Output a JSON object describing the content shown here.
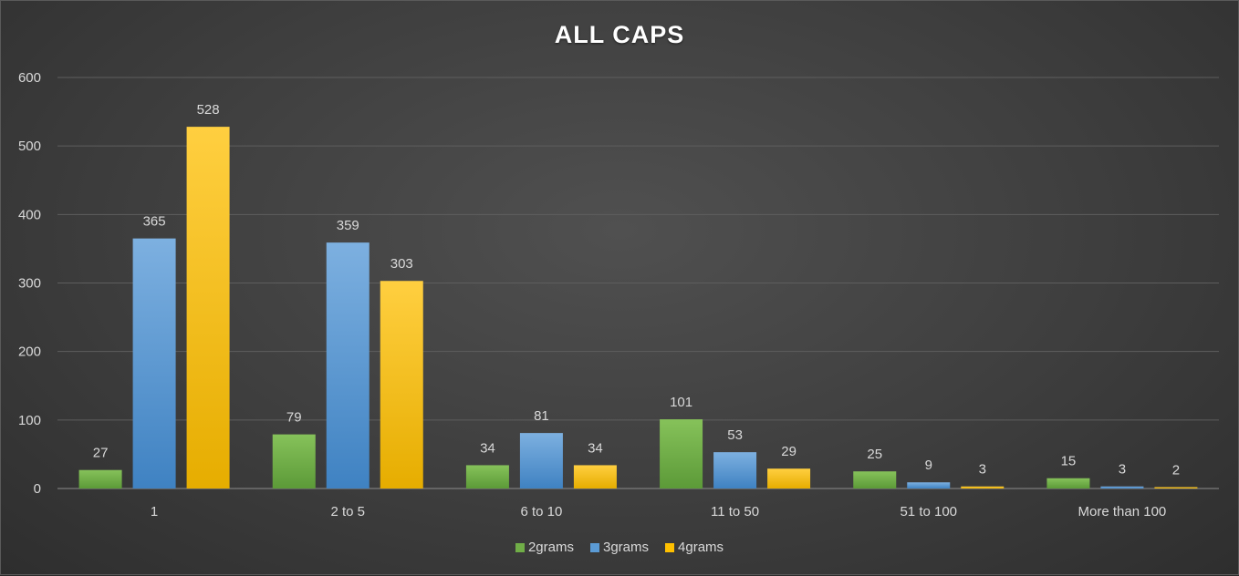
{
  "chart_data": {
    "type": "bar",
    "title": "ALL CAPS",
    "categories": [
      "1",
      "2 to 5",
      "6 to 10",
      "11 to 50",
      "51 to 100",
      "More than 100"
    ],
    "series": [
      {
        "name": "2grams",
        "color": "#70ad47",
        "values": [
          27,
          79,
          34,
          101,
          25,
          15
        ]
      },
      {
        "name": "3grams",
        "color": "#5b9bd5",
        "values": [
          365,
          359,
          81,
          53,
          9,
          3
        ]
      },
      {
        "name": "4grams",
        "color": "#ffc000",
        "values": [
          528,
          303,
          34,
          29,
          3,
          2
        ]
      }
    ],
    "ylim": [
      0,
      600
    ],
    "yticks": [
      0,
      100,
      200,
      300,
      400,
      500,
      600
    ],
    "grid": true,
    "legend_position": "bottom",
    "data_labels": true
  }
}
